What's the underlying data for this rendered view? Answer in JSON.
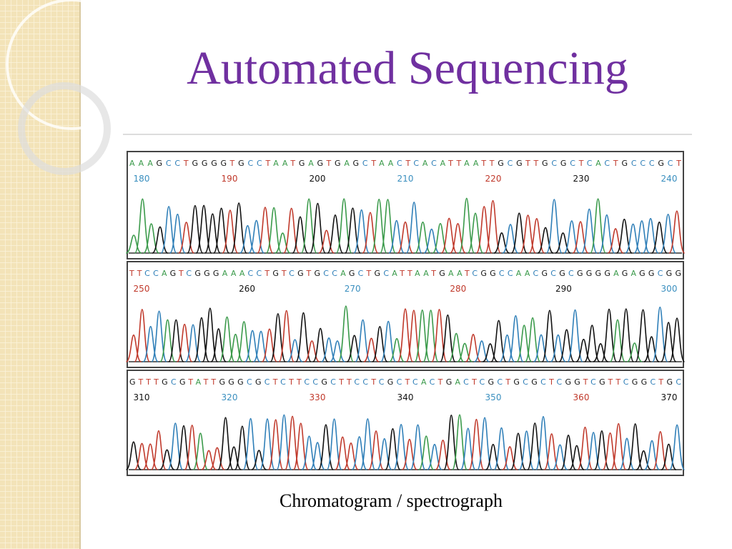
{
  "slide": {
    "title": "Automated Sequencing",
    "caption": "Chromatogram / spectrograph",
    "panels": [
      {
        "sequence": "AAAGCCTGGGGTGCCTAATGAGTGAGCTAACTCACATTAATTGCGTTGCGCTCACTGCCCGCT",
        "positions": [
          180,
          190,
          200,
          210,
          220,
          230,
          240
        ]
      },
      {
        "sequence": "TTCCAGTCGGGAAACCTGTCGTGCCAGCTGCATTAATGAATCGGCCAACGCGCGGGGAGAGGCGG",
        "positions": [
          250,
          260,
          270,
          280,
          290,
          300
        ]
      },
      {
        "sequence": "GTTTGCGTATTGGGCGCTCTTCCGCTTCCTCGCTCACTGACTCGCTGCGCTCGGTCGTTCGGCTGC",
        "positions": [
          310,
          320,
          330,
          340,
          350,
          360,
          370
        ]
      }
    ]
  }
}
